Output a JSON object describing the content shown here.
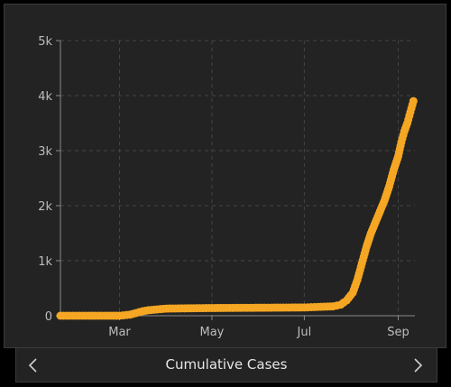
{
  "theme": {
    "background": "#000000",
    "panel": "#232323",
    "grid": "#444444",
    "axis": "#8a8a8a",
    "tick_text": "#bdbdbd",
    "series_color": "#f5a623"
  },
  "footer": {
    "label": "Cumulative Cases",
    "prev_icon": "chevron-left-icon",
    "next_icon": "chevron-right-icon"
  },
  "chart_data": {
    "type": "scatter",
    "title": "",
    "xlabel": "",
    "ylabel": "",
    "x_ticks": [
      {
        "label": "Mar",
        "date": "2020-03-01"
      },
      {
        "label": "May",
        "date": "2020-05-01"
      },
      {
        "label": "Jul",
        "date": "2020-07-01"
      },
      {
        "label": "Sep",
        "date": "2020-09-01"
      }
    ],
    "y_ticks": [
      {
        "label": "0",
        "value": 0
      },
      {
        "label": "1k",
        "value": 1000
      },
      {
        "label": "2k",
        "value": 2000
      },
      {
        "label": "3k",
        "value": 3000
      },
      {
        "label": "4k",
        "value": 4000
      },
      {
        "label": "5k",
        "value": 5000
      }
    ],
    "xlim": [
      "2020-01-22",
      "2020-09-12"
    ],
    "ylim": [
      0,
      5000
    ],
    "grid": true,
    "legend": "none",
    "series": [
      {
        "points": [
          {
            "x": "2020-01-22",
            "y": 0
          },
          {
            "x": "2020-02-10",
            "y": 0
          },
          {
            "x": "2020-03-01",
            "y": 0
          },
          {
            "x": "2020-03-08",
            "y": 20
          },
          {
            "x": "2020-03-12",
            "y": 50
          },
          {
            "x": "2020-03-16",
            "y": 80
          },
          {
            "x": "2020-03-20",
            "y": 100
          },
          {
            "x": "2020-04-01",
            "y": 130
          },
          {
            "x": "2020-05-01",
            "y": 140
          },
          {
            "x": "2020-06-01",
            "y": 145
          },
          {
            "x": "2020-07-01",
            "y": 150
          },
          {
            "x": "2020-07-10",
            "y": 160
          },
          {
            "x": "2020-07-20",
            "y": 170
          },
          {
            "x": "2020-07-25",
            "y": 200
          },
          {
            "x": "2020-07-29",
            "y": 280
          },
          {
            "x": "2020-08-02",
            "y": 420
          },
          {
            "x": "2020-08-05",
            "y": 650
          },
          {
            "x": "2020-08-08",
            "y": 950
          },
          {
            "x": "2020-08-11",
            "y": 1250
          },
          {
            "x": "2020-08-14",
            "y": 1500
          },
          {
            "x": "2020-08-17",
            "y": 1700
          },
          {
            "x": "2020-08-20",
            "y": 1900
          },
          {
            "x": "2020-08-23",
            "y": 2100
          },
          {
            "x": "2020-08-26",
            "y": 2350
          },
          {
            "x": "2020-08-29",
            "y": 2650
          },
          {
            "x": "2020-09-01",
            "y": 2900
          },
          {
            "x": "2020-09-03",
            "y": 3150
          },
          {
            "x": "2020-09-05",
            "y": 3350
          },
          {
            "x": "2020-09-07",
            "y": 3500
          },
          {
            "x": "2020-09-09",
            "y": 3700
          },
          {
            "x": "2020-09-11",
            "y": 3900
          }
        ]
      }
    ]
  }
}
